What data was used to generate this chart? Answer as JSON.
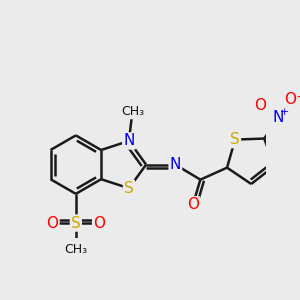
{
  "bg_color": "#ebebeb",
  "bond_color": "#1a1a1a",
  "bond_width": 1.8,
  "atom_colors": {
    "S": "#ccaa00",
    "N": "#0000ee",
    "O": "#ff0000",
    "C": "#111111"
  },
  "font_size": 10
}
